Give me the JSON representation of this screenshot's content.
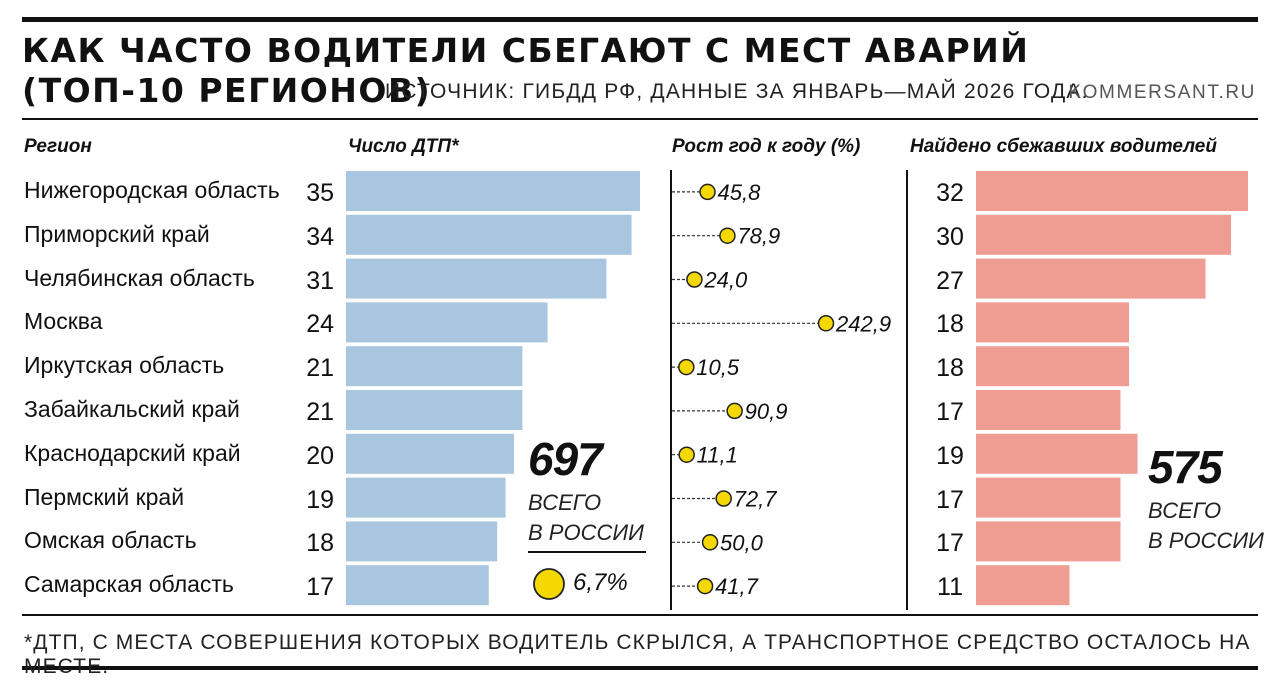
{
  "header": {
    "title_line1": "КАК ЧАСТО ВОДИТЕЛИ СБЕГАЮТ С МЕСТ АВАРИЙ",
    "title_line2": "(ТОП-10 РЕГИОНОВ)",
    "source": "ИСТОЧНИК: ГИБДД РФ, ДАННЫЕ ЗА ЯНВАРЬ—МАЙ 2026 ГОДА.",
    "site": "KOMMERSANT.RU"
  },
  "columns": {
    "region": "Регион",
    "accidents": "Число ДТП*",
    "growth": "Рост год к году (%)",
    "found": "Найдено сбежавших водителей"
  },
  "totals": {
    "accidents_value": "697",
    "accidents_label1": "ВСЕГО",
    "accidents_label2": "В РОССИИ",
    "growth_value": "6,7%",
    "found_value": "575",
    "found_label1": "ВСЕГО",
    "found_label2": "В РОССИИ"
  },
  "footnote": "*ДТП, С МЕСТА СОВЕРШЕНИЯ КОТОРЫХ ВОДИТЕЛЬ СКРЫЛСЯ, А ТРАНСПОРТНОЕ СРЕДСТВО ОСТАЛОСЬ НА МЕСТЕ.",
  "colors": {
    "accidents_bar": "#a9c6e0",
    "found_bar": "#ef9c92",
    "dot_fill": "#f5d800",
    "dot_stroke": "#222222"
  },
  "chart_data": [
    {
      "type": "bar",
      "title": "Число ДТП*",
      "categories": [
        "Нижегородская область",
        "Приморский край",
        "Челябинская область",
        "Москва",
        "Иркутская область",
        "Забайкальский край",
        "Краснодарский край",
        "Пермский край",
        "Омская область",
        "Самарская область"
      ],
      "values": [
        35,
        34,
        31,
        24,
        21,
        21,
        20,
        19,
        18,
        17
      ],
      "labels": [
        "35",
        "34",
        "31",
        "24",
        "21",
        "21",
        "20",
        "19",
        "18",
        "17"
      ]
    },
    {
      "type": "scatter",
      "title": "Рост год к году (%)",
      "categories": [
        "Нижегородская область",
        "Приморский край",
        "Челябинская область",
        "Москва",
        "Иркутская область",
        "Забайкальский край",
        "Краснодарский край",
        "Пермский край",
        "Омская область",
        "Самарская область"
      ],
      "values": [
        45.8,
        78.9,
        24.0,
        242.9,
        10.5,
        90.9,
        11.1,
        72.7,
        50.0,
        41.7
      ],
      "labels": [
        "45,8",
        "78,9",
        "24,0",
        "242,9",
        "10,5",
        "90,9",
        "11,1",
        "72,7",
        "50,0",
        "41,7"
      ]
    },
    {
      "type": "bar",
      "title": "Найдено сбежавших водителей",
      "categories": [
        "Нижегородская область",
        "Приморский край",
        "Челябинская область",
        "Москва",
        "Иркутская область",
        "Забайкальский край",
        "Краснодарский край",
        "Пермский край",
        "Омская область",
        "Самарская область"
      ],
      "values": [
        32,
        30,
        27,
        18,
        18,
        17,
        19,
        17,
        17,
        11
      ],
      "labels": [
        "32",
        "30",
        "27",
        "18",
        "18",
        "17",
        "19",
        "17",
        "17",
        "11"
      ]
    }
  ]
}
